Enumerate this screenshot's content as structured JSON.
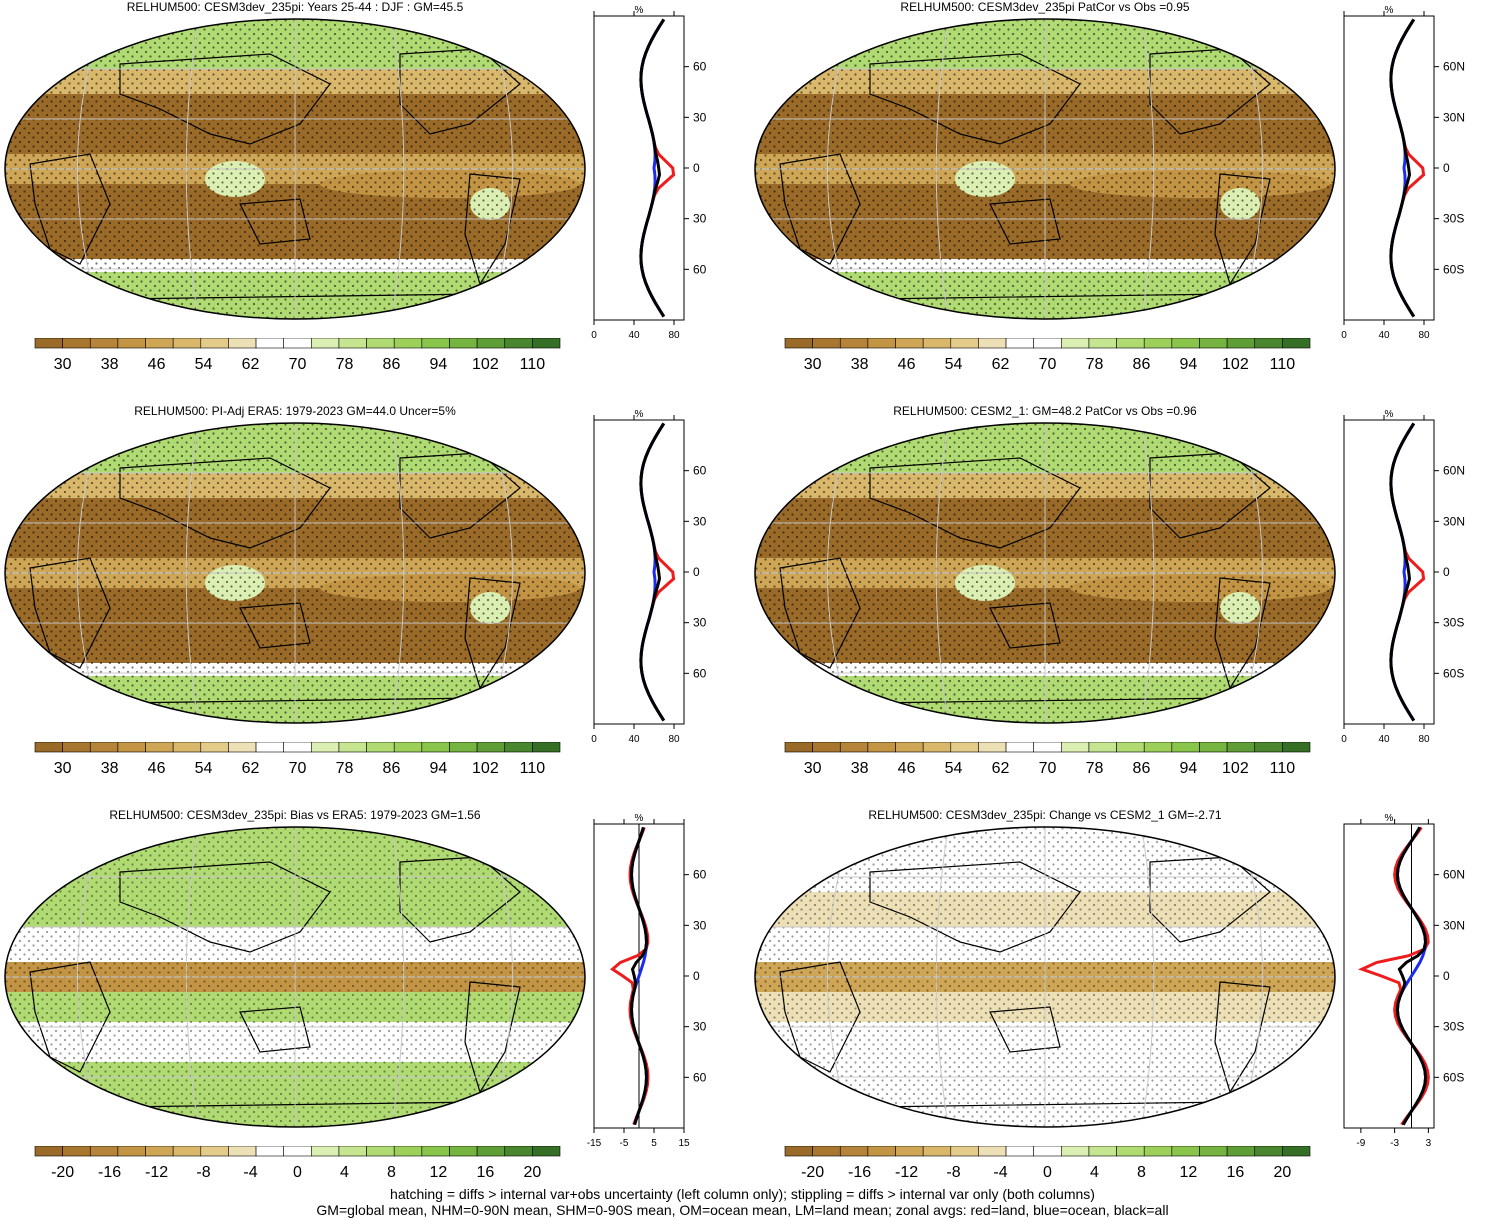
{
  "palettes": {
    "abs": [
      "#9a6a28",
      "#a8762e",
      "#b5843a",
      "#c29444",
      "#cea656",
      "#d9b86c",
      "#e3cb8a",
      "#ede0b6",
      "#ffffff",
      "#ffffff",
      "#dcefb2",
      "#c5e591",
      "#b0da72",
      "#9dd05b",
      "#89c44b",
      "#75b440",
      "#5f9e37",
      "#4a862d",
      "#356f25"
    ],
    "diff": [
      "#9a6a28",
      "#a8762e",
      "#b5843a",
      "#c29444",
      "#cea656",
      "#d9b86c",
      "#e3cb8a",
      "#ede0b6",
      "#ffffff",
      "#ffffff",
      "#dcefb2",
      "#c5e591",
      "#b0da72",
      "#9dd05b",
      "#89c44b",
      "#75b440",
      "#5f9e37",
      "#4a862d",
      "#356f25"
    ]
  },
  "colorbar_abs_labels": [
    "30",
    "38",
    "46",
    "54",
    "62",
    "70",
    "78",
    "86",
    "94",
    "102",
    "110"
  ],
  "colorbar_diff_labels": [
    "-20",
    "-16",
    "-12",
    "-8",
    "-4",
    "0",
    "4",
    "8",
    "12",
    "16",
    "20"
  ],
  "lat_labels": [
    "60N",
    "30N",
    "0",
    "30S",
    "60S"
  ],
  "zonal_axis_label": "%",
  "panels": [
    {
      "title": "RELHUM500: CESM3dev_235pi: Years 25-44 : DJF : GM=45.5",
      "type": "abs",
      "zonal_ticks": [
        "0",
        "40",
        "80"
      ]
    },
    {
      "title": "RELHUM500: CESM3dev_235pi PatCor vs Obs =0.95",
      "type": "abs",
      "zonal_ticks": [
        "0",
        "40",
        "80"
      ]
    },
    {
      "title": "RELHUM500: PI-Adj ERA5: 1979-2023 GM=44.0 Uncer=5%",
      "type": "abs",
      "zonal_ticks": [
        "0",
        "40",
        "80"
      ]
    },
    {
      "title": "RELHUM500: CESM2_1: GM=48.2 PatCor vs Obs =0.96",
      "type": "abs",
      "zonal_ticks": [
        "0",
        "40",
        "80"
      ]
    },
    {
      "title": "RELHUM500: CESM3dev_235pi: Bias vs ERA5: 1979-2023 GM=1.56",
      "type": "diff",
      "zonal_ticks": [
        "-15",
        "-5",
        "5",
        "15"
      ]
    },
    {
      "title": "RELHUM500: CESM3dev_235pi: Change vs CESM2_1 GM=-2.71",
      "type": "diff",
      "zonal_ticks": [
        "-9",
        "-3",
        "3"
      ]
    }
  ],
  "footer": {
    "line1": "hatching = diffs > internal var+obs uncertainty (left column only); stippling = diffs > internal var only (both columns)",
    "line2": "GM=global mean, NHM=0-90N mean, SHM=0-90S mean, OM=ocean mean, LM=land mean; zonal avgs: red=land, blue=ocean, black=all"
  }
}
